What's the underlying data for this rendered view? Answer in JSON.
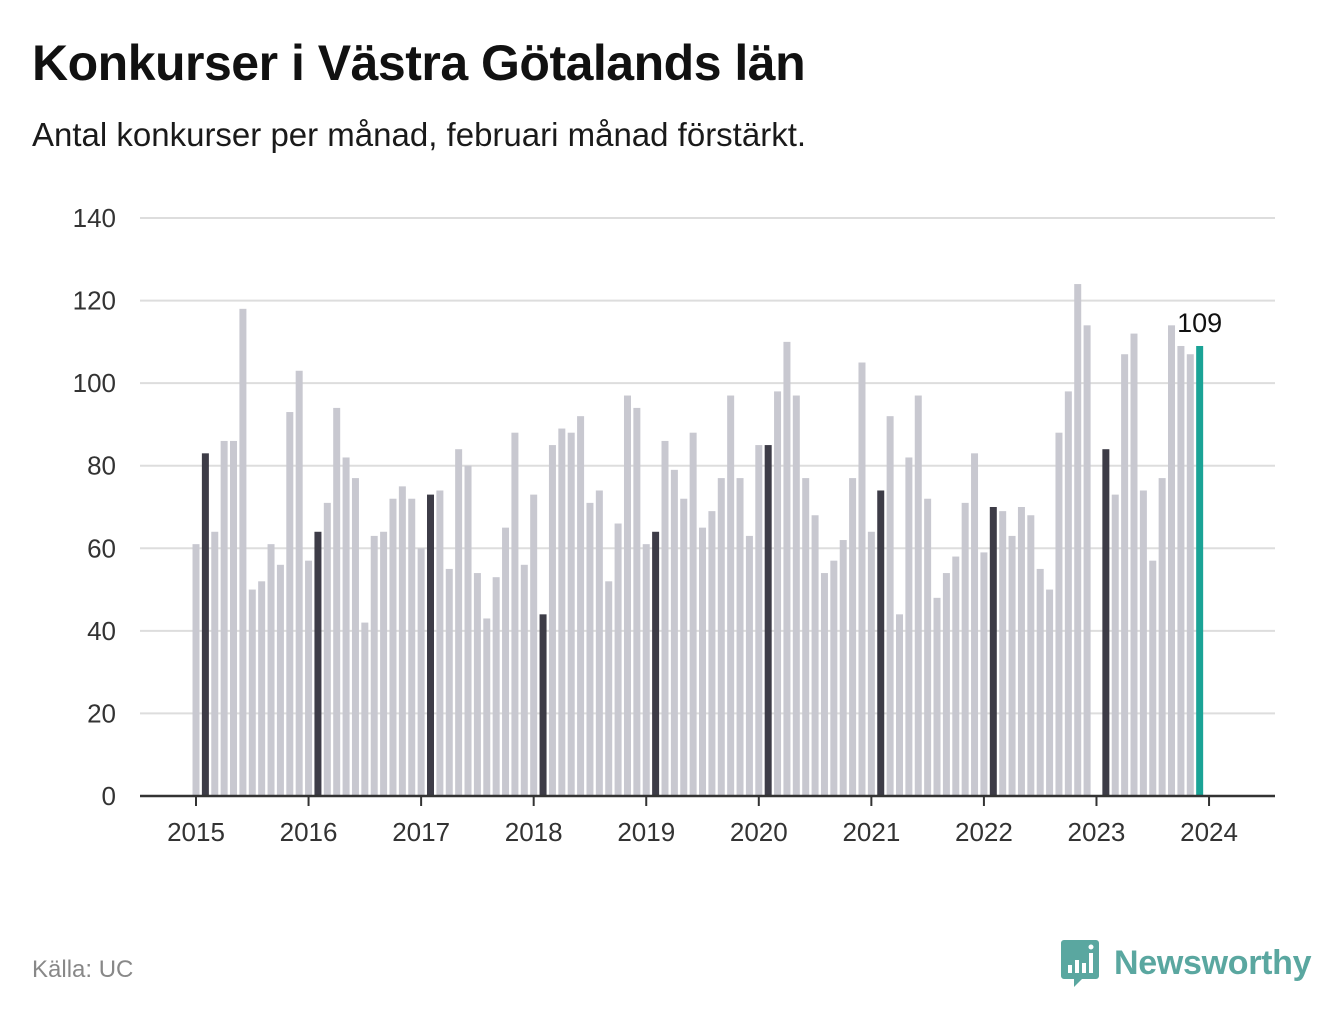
{
  "chart_data": {
    "type": "bar",
    "title": "Konkurser i Västra Götalands län",
    "subtitle": "Antal konkurser per månad, februari månad förstärkt.",
    "ylim": [
      0,
      140
    ],
    "yticks": [
      0,
      20,
      40,
      60,
      80,
      100,
      120,
      140
    ],
    "x_tick_labels": [
      "2015",
      "2016",
      "2017",
      "2018",
      "2019",
      "2020",
      "2021",
      "2022",
      "2023",
      "2024"
    ],
    "start": "2015-01",
    "values": [
      61,
      83,
      64,
      86,
      86,
      118,
      50,
      52,
      61,
      56,
      93,
      103,
      57,
      64,
      71,
      94,
      82,
      77,
      42,
      63,
      64,
      72,
      75,
      72,
      60,
      73,
      74,
      55,
      84,
      80,
      54,
      43,
      53,
      65,
      88,
      56,
      73,
      44,
      85,
      89,
      88,
      92,
      71,
      74,
      52,
      66,
      97,
      94,
      61,
      64,
      86,
      79,
      72,
      88,
      65,
      69,
      77,
      97,
      77,
      63,
      85,
      85,
      98,
      110,
      97,
      77,
      68,
      54,
      57,
      62,
      77,
      105,
      64,
      74,
      92,
      44,
      82,
      97,
      72,
      48,
      54,
      58,
      71,
      83,
      59,
      70,
      69,
      63,
      70,
      68,
      55,
      50,
      88,
      98,
      124,
      114,
      0,
      84,
      73,
      107,
      112,
      74,
      57,
      77,
      114,
      109,
      107,
      109
    ],
    "highlight_month": 2,
    "latest_label": "109",
    "grid": true,
    "colors": {
      "bar": "#c8c8d0",
      "february": "#3d3c47",
      "latest": "#1aa396",
      "grid": "#dddddd",
      "axis": "#333333"
    }
  },
  "footer": {
    "source": "Källa: UC",
    "brand": "Newsworthy",
    "brand_icon": "newsworthy-chart-icon",
    "brand_color": "#5aa7a0"
  }
}
